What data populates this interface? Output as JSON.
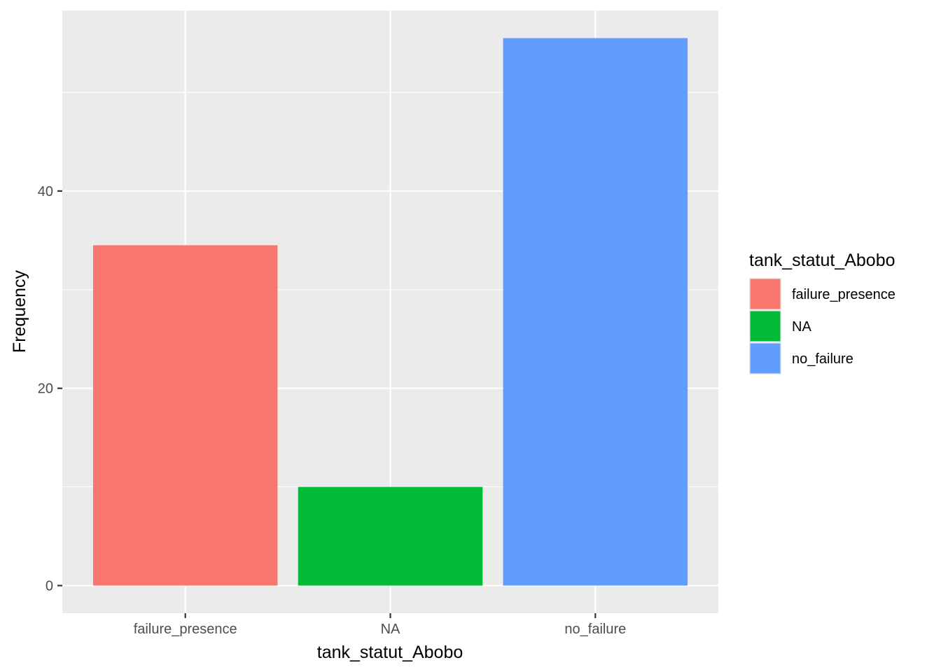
{
  "chart_data": {
    "type": "bar",
    "categories": [
      "failure_presence",
      "NA",
      "no_failure"
    ],
    "values": [
      34.5,
      10,
      55.5
    ],
    "colors": [
      "#F8766D",
      "#00BA38",
      "#619CFF"
    ],
    "xlabel": "tank_statut_Abobo",
    "ylabel": "Frequency",
    "ylim": [
      -2.8,
      58.3
    ],
    "yticks": [
      0,
      20,
      40
    ],
    "yticks_labels": [
      "0",
      "20",
      "40"
    ],
    "grid": true,
    "legend": {
      "title": "tank_statut_Abobo",
      "placement": "right",
      "entries": [
        "failure_presence",
        "NA",
        "no_failure"
      ]
    }
  }
}
